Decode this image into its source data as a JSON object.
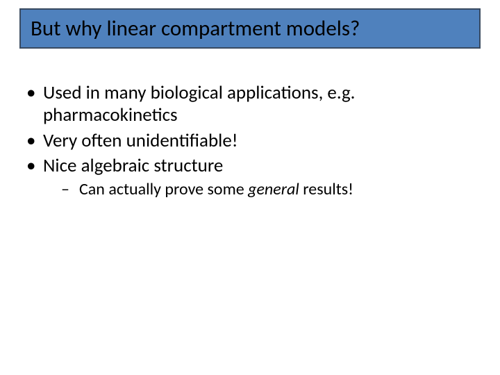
{
  "slide": {
    "title": "But why linear compartment models?",
    "title_box": {
      "background_color": "#4f81bd",
      "border_color": "#394a60",
      "title_fontsize": 31
    },
    "body_fontsize_level1": 27,
    "body_fontsize_level2": 24,
    "background_color": "#ffffff",
    "text_color": "#000000",
    "bullets": [
      {
        "text": "Used in many biological applications, e.g. pharmacokinetics",
        "sub": []
      },
      {
        "text": "Very often unidentifiable!",
        "sub": []
      },
      {
        "text": "Nice algebraic structure",
        "sub": [
          {
            "prefix": "Can actually prove some ",
            "italic": "general",
            "suffix": " results!"
          }
        ]
      }
    ]
  }
}
